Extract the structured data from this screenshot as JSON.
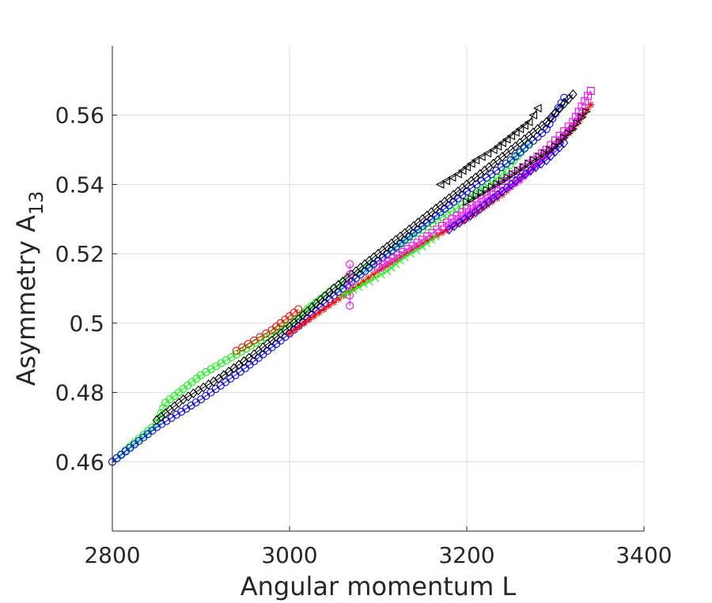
{
  "chart_data": {
    "type": "scatter",
    "xlabel": "Angular momentum L",
    "ylabel": "Asymmetry A",
    "ylabel_subscript": "13",
    "xlim": [
      2800,
      3400
    ],
    "ylim": [
      0.44,
      0.58
    ],
    "x_ticks": [
      2800,
      3000,
      3200,
      3400
    ],
    "y_ticks": [
      0.46,
      0.48,
      0.5,
      0.52,
      0.54,
      0.56
    ],
    "x_tick_labels": [
      "2800",
      "3000",
      "3200",
      "3400"
    ],
    "y_tick_labels": [
      "0.46",
      "0.48",
      "0.5",
      "0.52",
      "0.54",
      "0.56"
    ],
    "grid": true,
    "legend": "none",
    "series": [
      {
        "color": "#00ff00",
        "marker": "circle",
        "points": [
          [
            2800,
            0.46
          ],
          [
            2850,
            0.471
          ],
          [
            2860,
            0.477
          ],
          [
            2900,
            0.485
          ],
          [
            2940,
            0.491
          ],
          [
            3000,
            0.5
          ],
          [
            3050,
            0.51
          ],
          [
            3100,
            0.518
          ],
          [
            3150,
            0.527
          ],
          [
            3200,
            0.535
          ],
          [
            3240,
            0.543
          ],
          [
            3270,
            0.552
          ]
        ]
      },
      {
        "color": "#0000ff",
        "marker": "circle",
        "points": [
          [
            2800,
            0.46
          ],
          [
            2850,
            0.47
          ],
          [
            2900,
            0.478
          ],
          [
            2950,
            0.487
          ],
          [
            3000,
            0.497
          ],
          [
            3050,
            0.508
          ],
          [
            3100,
            0.518
          ],
          [
            3150,
            0.528
          ],
          [
            3200,
            0.538
          ],
          [
            3250,
            0.547
          ],
          [
            3290,
            0.556
          ],
          [
            3310,
            0.565
          ]
        ]
      },
      {
        "color": "#000000",
        "marker": "diamond",
        "points": [
          [
            2850,
            0.472
          ],
          [
            2880,
            0.478
          ],
          [
            2920,
            0.484
          ],
          [
            2960,
            0.491
          ],
          [
            3000,
            0.499
          ],
          [
            3050,
            0.51
          ],
          [
            3100,
            0.52
          ],
          [
            3150,
            0.53
          ],
          [
            3200,
            0.54
          ],
          [
            3250,
            0.55
          ],
          [
            3290,
            0.558
          ],
          [
            3320,
            0.566
          ]
        ]
      },
      {
        "color": "#ff0000",
        "marker": "circle",
        "points": [
          [
            2940,
            0.492
          ],
          [
            2960,
            0.495
          ],
          [
            2980,
            0.498
          ],
          [
            3000,
            0.502
          ],
          [
            3010,
            0.504
          ]
        ]
      },
      {
        "color": "#ff0000",
        "marker": "star",
        "points": [
          [
            3000,
            0.497
          ],
          [
            3050,
            0.506
          ],
          [
            3100,
            0.515
          ],
          [
            3150,
            0.523
          ],
          [
            3200,
            0.53
          ],
          [
            3240,
            0.537
          ],
          [
            3280,
            0.546
          ],
          [
            3320,
            0.556
          ],
          [
            3340,
            0.563
          ]
        ]
      },
      {
        "color": "#ff00ff",
        "marker": "circle",
        "points": [
          [
            3068,
            0.505
          ],
          [
            3068,
            0.508
          ],
          [
            3068,
            0.511
          ],
          [
            3068,
            0.514
          ],
          [
            3068,
            0.517
          ]
        ]
      },
      {
        "color": "#ff00ff",
        "marker": "square",
        "points": [
          [
            3100,
            0.516
          ],
          [
            3150,
            0.524
          ],
          [
            3200,
            0.533
          ],
          [
            3250,
            0.542
          ],
          [
            3290,
            0.55
          ],
          [
            3320,
            0.558
          ],
          [
            3340,
            0.567
          ]
        ]
      },
      {
        "color": "#ff00ff",
        "marker": "star",
        "points": [
          [
            3180,
            0.528
          ],
          [
            3220,
            0.535
          ],
          [
            3260,
            0.541
          ],
          [
            3290,
            0.548
          ],
          [
            3310,
            0.554
          ],
          [
            3330,
            0.56
          ]
        ]
      },
      {
        "color": "#0000ff",
        "marker": "diamond",
        "points": [
          [
            3180,
            0.527
          ],
          [
            3210,
            0.532
          ],
          [
            3240,
            0.538
          ],
          [
            3260,
            0.542
          ],
          [
            3290,
            0.547
          ],
          [
            3310,
            0.552
          ]
        ]
      },
      {
        "color": "#000000",
        "marker": "triangle-left",
        "points": [
          [
            3170,
            0.54
          ],
          [
            3190,
            0.543
          ],
          [
            3210,
            0.547
          ],
          [
            3230,
            0.55
          ],
          [
            3250,
            0.554
          ],
          [
            3270,
            0.558
          ],
          [
            3280,
            0.562
          ]
        ]
      },
      {
        "color": "#000000",
        "marker": "triangle-right",
        "points": [
          [
            3200,
            0.535
          ],
          [
            3240,
            0.541
          ],
          [
            3270,
            0.546
          ],
          [
            3300,
            0.551
          ],
          [
            3320,
            0.556
          ],
          [
            3335,
            0.561
          ]
        ]
      },
      {
        "color": "#00ff00",
        "marker": "x",
        "points": [
          [
            3060,
            0.508
          ],
          [
            3090,
            0.512
          ],
          [
            3110,
            0.515
          ],
          [
            3130,
            0.519
          ],
          [
            3150,
            0.522
          ],
          [
            3165,
            0.525
          ]
        ]
      }
    ]
  }
}
